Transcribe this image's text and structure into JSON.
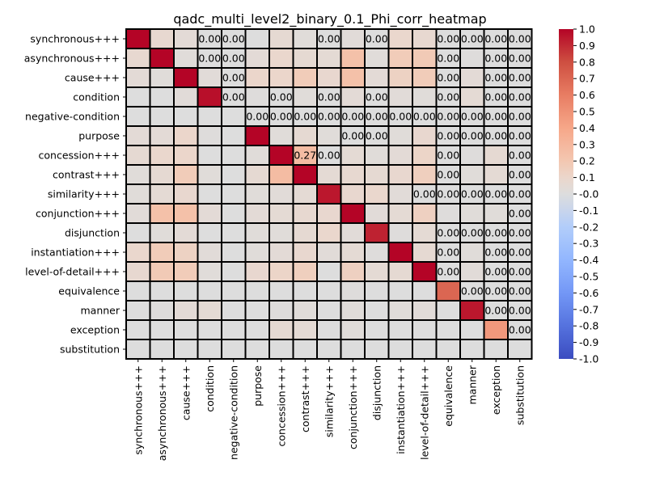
{
  "chart_data": {
    "type": "heatmap",
    "title": "qadc_multi_level2_binary_0.1_Phi_corr_heatmap",
    "labels": [
      "synchronous+++",
      "asynchronous+++",
      "cause+++",
      "condition",
      "negative-condition",
      "purpose",
      "concession+++",
      "contrast+++",
      "similarity+++",
      "conjunction+++",
      "disjunction",
      "instantiation+++",
      "level-of-detail+++",
      "equivalence",
      "manner",
      "exception",
      "substitution"
    ],
    "vmin": -1.0,
    "vmax": 1.0,
    "colormap": "coolwarm",
    "colorbar_ticks": [
      "1.0",
      "0.9",
      "0.8",
      "0.7",
      "0.6",
      "0.5",
      "0.4",
      "0.3",
      "0.2",
      "0.1",
      "-0.0",
      "-0.1",
      "-0.2",
      "-0.3",
      "-0.4",
      "-0.5",
      "-0.6",
      "-0.7",
      "-0.8",
      "-0.9",
      "-1.0"
    ],
    "values": [
      [
        1.0,
        0.07,
        0.04,
        0.0,
        0.0,
        0.0,
        0.06,
        0.02,
        0.0,
        0.03,
        0.0,
        0.09,
        0.07,
        0.0,
        0.0,
        0.0,
        0.0
      ],
      [
        0.07,
        1.0,
        0.02,
        0.0,
        0.0,
        0.04,
        0.09,
        0.06,
        0.05,
        0.24,
        0.02,
        0.17,
        0.18,
        0.0,
        0.01,
        0.0,
        0.0
      ],
      [
        0.04,
        0.02,
        1.0,
        0.03,
        0.0,
        0.1,
        0.1,
        0.17,
        0.08,
        0.24,
        0.04,
        0.13,
        0.17,
        0.0,
        0.04,
        0.0,
        0.0
      ],
      [
        0.0,
        0.0,
        0.03,
        0.97,
        0.0,
        0.01,
        0.0,
        0.02,
        0.0,
        0.04,
        0.0,
        0.03,
        0.02,
        0.0,
        0.05,
        0.0,
        0.0
      ],
      [
        0.0,
        0.0,
        0.0,
        0.0,
        0.0,
        0.0,
        0.0,
        0.0,
        0.0,
        0.0,
        0.0,
        0.0,
        0.0,
        0.0,
        0.0,
        0.0,
        0.0
      ],
      [
        0.04,
        0.04,
        0.1,
        0.01,
        0.0,
        1.0,
        0.02,
        0.06,
        0.02,
        0.0,
        0.0,
        0.02,
        0.08,
        0.0,
        0.0,
        0.0,
        0.0
      ],
      [
        0.06,
        0.09,
        0.1,
        0.0,
        0.0,
        0.02,
        1.0,
        0.27,
        0.0,
        0.05,
        0.02,
        0.04,
        0.11,
        0.0,
        0.01,
        0.06,
        0.0
      ],
      [
        0.02,
        0.06,
        0.17,
        0.02,
        0.0,
        0.06,
        0.27,
        1.0,
        0.05,
        0.07,
        0.06,
        0.08,
        0.15,
        0.0,
        0.02,
        0.05,
        0.0
      ],
      [
        0.02,
        0.05,
        0.08,
        0.0,
        0.0,
        0.02,
        0.03,
        0.05,
        0.95,
        0.08,
        0.09,
        0.03,
        0.0,
        0.0,
        0.0,
        0.0,
        0.0
      ],
      [
        0.03,
        0.24,
        0.24,
        0.04,
        0.0,
        0.04,
        0.05,
        0.07,
        0.08,
        1.0,
        0.03,
        0.05,
        0.14,
        0.01,
        0.02,
        0.02,
        0.0
      ],
      [
        0.0,
        0.02,
        0.04,
        0.0,
        0.0,
        0.02,
        0.02,
        0.06,
        0.09,
        0.03,
        0.92,
        0.01,
        0.05,
        0.0,
        0.0,
        0.0,
        0.0
      ],
      [
        0.09,
        0.17,
        0.13,
        0.03,
        0.0,
        0.02,
        0.04,
        0.08,
        0.03,
        0.05,
        0.01,
        1.0,
        0.06,
        0.0,
        0.02,
        0.0,
        0.0
      ],
      [
        0.07,
        0.18,
        0.17,
        0.02,
        0.0,
        0.08,
        0.11,
        0.15,
        0.0,
        0.14,
        0.05,
        0.06,
        1.0,
        0.0,
        0.03,
        0.0,
        0.0
      ],
      [
        0.0,
        0.0,
        0.0,
        0.0,
        0.0,
        0.0,
        0.0,
        0.0,
        0.0,
        0.01,
        0.0,
        0.0,
        0.0,
        0.7,
        0.0,
        0.0,
        0.0
      ],
      [
        0.0,
        0.01,
        0.04,
        0.05,
        0.0,
        0.0,
        0.01,
        0.02,
        0.0,
        0.02,
        0.0,
        0.02,
        0.03,
        0.0,
        0.95,
        0.0,
        0.0
      ],
      [
        0.0,
        0.0,
        0.0,
        0.0,
        0.0,
        0.0,
        0.06,
        0.05,
        0.0,
        0.02,
        0.0,
        0.0,
        0.0,
        0.0,
        0.0,
        0.47,
        0.0
      ],
      [
        0.0,
        0.0,
        0.0,
        0.0,
        0.0,
        0.0,
        0.0,
        0.0,
        0.0,
        0.0,
        0.0,
        0.0,
        0.0,
        0.0,
        0.0,
        0.0,
        0.0
      ]
    ],
    "annotations": [
      {
        "row": 0,
        "col": 3,
        "text": "0.00"
      },
      {
        "row": 0,
        "col": 4,
        "text": "0.00"
      },
      {
        "row": 0,
        "col": 8,
        "text": "0.00"
      },
      {
        "row": 0,
        "col": 10,
        "text": "0.00"
      },
      {
        "row": 0,
        "col": 13,
        "text": "0.00"
      },
      {
        "row": 0,
        "col": 14,
        "text": "0.00"
      },
      {
        "row": 0,
        "col": 15,
        "text": "0.00"
      },
      {
        "row": 0,
        "col": 16,
        "text": "0.00"
      },
      {
        "row": 1,
        "col": 3,
        "text": "0.00"
      },
      {
        "row": 1,
        "col": 4,
        "text": "0.00"
      },
      {
        "row": 1,
        "col": 13,
        "text": "0.00"
      },
      {
        "row": 1,
        "col": 15,
        "text": "0.00"
      },
      {
        "row": 1,
        "col": 16,
        "text": "0.00"
      },
      {
        "row": 2,
        "col": 4,
        "text": "0.00"
      },
      {
        "row": 2,
        "col": 13,
        "text": "0.00"
      },
      {
        "row": 2,
        "col": 15,
        "text": "0.00"
      },
      {
        "row": 2,
        "col": 16,
        "text": "0.00"
      },
      {
        "row": 3,
        "col": 4,
        "text": "0.00"
      },
      {
        "row": 3,
        "col": 6,
        "text": "0.00"
      },
      {
        "row": 3,
        "col": 8,
        "text": "0.00"
      },
      {
        "row": 3,
        "col": 10,
        "text": "0.00"
      },
      {
        "row": 3,
        "col": 13,
        "text": "0.00"
      },
      {
        "row": 3,
        "col": 15,
        "text": "0.00"
      },
      {
        "row": 3,
        "col": 16,
        "text": "0.00"
      },
      {
        "row": 4,
        "col": 5,
        "text": "0.00"
      },
      {
        "row": 4,
        "col": 6,
        "text": "0.00"
      },
      {
        "row": 4,
        "col": 7,
        "text": "0.00"
      },
      {
        "row": 4,
        "col": 8,
        "text": "0.00"
      },
      {
        "row": 4,
        "col": 9,
        "text": "0.00"
      },
      {
        "row": 4,
        "col": 10,
        "text": "0.00"
      },
      {
        "row": 4,
        "col": 11,
        "text": "0.00"
      },
      {
        "row": 4,
        "col": 12,
        "text": "0.00"
      },
      {
        "row": 4,
        "col": 13,
        "text": "0.00"
      },
      {
        "row": 4,
        "col": 14,
        "text": "0.00"
      },
      {
        "row": 4,
        "col": 15,
        "text": "0.00"
      },
      {
        "row": 4,
        "col": 16,
        "text": "0.00"
      },
      {
        "row": 5,
        "col": 9,
        "text": "0.00"
      },
      {
        "row": 5,
        "col": 10,
        "text": "0.00"
      },
      {
        "row": 5,
        "col": 13,
        "text": "0.00"
      },
      {
        "row": 5,
        "col": 14,
        "text": "0.00"
      },
      {
        "row": 5,
        "col": 15,
        "text": "0.00"
      },
      {
        "row": 5,
        "col": 16,
        "text": "0.00"
      },
      {
        "row": 6,
        "col": 7,
        "text": "0.27"
      },
      {
        "row": 6,
        "col": 8,
        "text": "0.00"
      },
      {
        "row": 6,
        "col": 13,
        "text": "0.00"
      },
      {
        "row": 6,
        "col": 16,
        "text": "0.00"
      },
      {
        "row": 7,
        "col": 13,
        "text": "0.00"
      },
      {
        "row": 7,
        "col": 16,
        "text": "0.00"
      },
      {
        "row": 8,
        "col": 12,
        "text": "0.00"
      },
      {
        "row": 8,
        "col": 13,
        "text": "0.00"
      },
      {
        "row": 8,
        "col": 14,
        "text": "0.00"
      },
      {
        "row": 8,
        "col": 15,
        "text": "0.00"
      },
      {
        "row": 8,
        "col": 16,
        "text": "0.00"
      },
      {
        "row": 9,
        "col": 16,
        "text": "0.00"
      },
      {
        "row": 10,
        "col": 13,
        "text": "0.00"
      },
      {
        "row": 10,
        "col": 14,
        "text": "0.00"
      },
      {
        "row": 10,
        "col": 15,
        "text": "0.00"
      },
      {
        "row": 10,
        "col": 16,
        "text": "0.00"
      },
      {
        "row": 11,
        "col": 13,
        "text": "0.00"
      },
      {
        "row": 11,
        "col": 15,
        "text": "0.00"
      },
      {
        "row": 11,
        "col": 16,
        "text": "0.00"
      },
      {
        "row": 12,
        "col": 13,
        "text": "0.00"
      },
      {
        "row": 12,
        "col": 15,
        "text": "0.00"
      },
      {
        "row": 12,
        "col": 16,
        "text": "0.00"
      },
      {
        "row": 13,
        "col": 14,
        "text": "0.00"
      },
      {
        "row": 13,
        "col": 15,
        "text": "0.00"
      },
      {
        "row": 13,
        "col": 16,
        "text": "0.00"
      },
      {
        "row": 14,
        "col": 15,
        "text": "0.00"
      },
      {
        "row": 14,
        "col": 16,
        "text": "0.00"
      },
      {
        "row": 15,
        "col": 16,
        "text": "0.00"
      }
    ]
  }
}
